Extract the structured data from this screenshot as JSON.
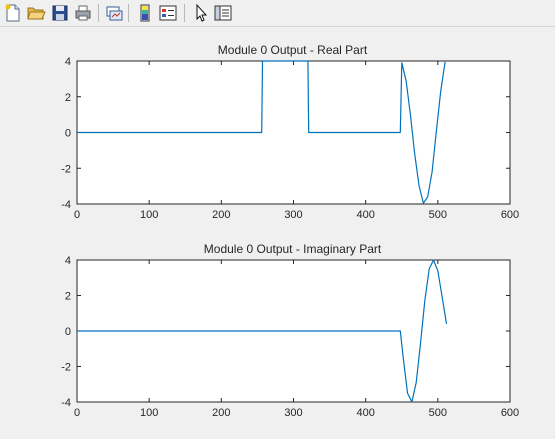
{
  "toolbar": {
    "buttons": [
      {
        "name": "new-figure-button",
        "icon": "new-file-icon"
      },
      {
        "name": "open-file-button",
        "icon": "folder-icon"
      },
      {
        "name": "save-figure-button",
        "icon": "save-icon"
      },
      {
        "name": "print-figure-button",
        "icon": "printer-icon"
      },
      {
        "name": "link-plot-button",
        "icon": "link-plot-icon"
      },
      {
        "name": "colorbar-button",
        "icon": "colorbar-icon"
      },
      {
        "name": "legend-button",
        "icon": "legend-icon"
      },
      {
        "name": "edit-plot-button",
        "icon": "pointer-icon"
      },
      {
        "name": "property-inspector-button",
        "icon": "panel-icon"
      }
    ]
  },
  "colors": {
    "line": "#0072bd",
    "axes_bg": "#ffffff",
    "axes_border": "#262626",
    "figure_bg": "#f0f0f0"
  },
  "chart_data": [
    {
      "type": "line",
      "title": "Module 0 Output - Real Part",
      "xlim": [
        0,
        600
      ],
      "ylim": [
        -4,
        4
      ],
      "xticks": [
        "0",
        "100",
        "200",
        "300",
        "400",
        "500",
        "600"
      ],
      "yticks": [
        "4",
        "2",
        "0",
        "-2",
        "-4"
      ],
      "series": [
        {
          "x": [
            0,
            256,
            257,
            320,
            321,
            448,
            450,
            456,
            462,
            468,
            474,
            480,
            486,
            492,
            498,
            504,
            510
          ],
          "y": [
            0,
            0,
            4,
            4,
            0,
            0,
            3.9,
            2.9,
            1.0,
            -1.2,
            -3.0,
            -3.95,
            -3.6,
            -2.2,
            0.1,
            2.3,
            3.95
          ]
        }
      ]
    },
    {
      "type": "line",
      "title": "Module 0 Output - Imaginary Part",
      "xlim": [
        0,
        600
      ],
      "ylim": [
        -4,
        4
      ],
      "xticks": [
        "0",
        "100",
        "200",
        "300",
        "400",
        "500",
        "600"
      ],
      "yticks": [
        "4",
        "2",
        "0",
        "-2",
        "-4"
      ],
      "series": [
        {
          "x": [
            0,
            448,
            452,
            458,
            464,
            470,
            476,
            482,
            488,
            494,
            500,
            506,
            512
          ],
          "y": [
            0,
            0,
            -1.5,
            -3.5,
            -4.0,
            -2.9,
            -0.7,
            1.7,
            3.5,
            4.0,
            3.4,
            1.9,
            0.4
          ]
        }
      ]
    }
  ]
}
